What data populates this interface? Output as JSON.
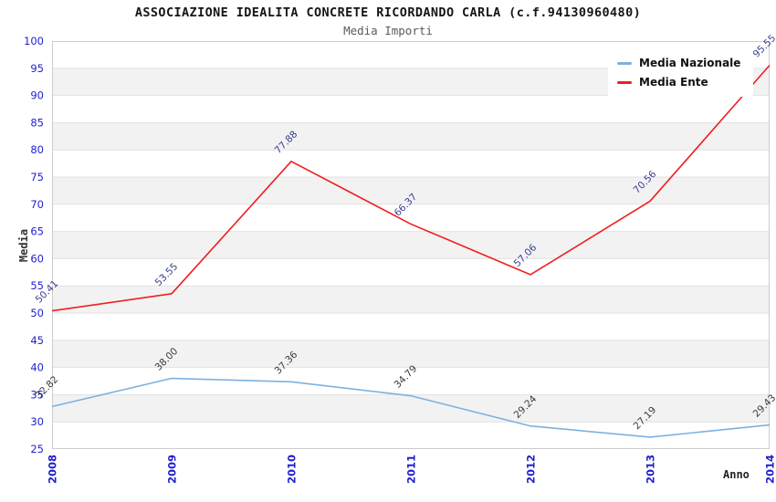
{
  "title": "ASSOCIAZIONE IDEALITA CONCRETE RICORDANDO CARLA (c.f.94130960480)",
  "subtitle": "Media Importi",
  "chart_data": {
    "type": "line",
    "x": [
      "2008",
      "2009",
      "2010",
      "2011",
      "2012",
      "2013",
      "2014"
    ],
    "xlabel": "Anno",
    "ylabel": "Media",
    "ylim": [
      25,
      100
    ],
    "ytick_step": 5,
    "grid": "horizontal-alternating-bands",
    "legend_position": "top-right",
    "series": [
      {
        "name": "Media Nazionale",
        "color": "#7cb1e2",
        "label_color": "#3a3a3a",
        "values": [
          32.82,
          38.0,
          37.36,
          34.79,
          29.24,
          27.19,
          29.43
        ]
      },
      {
        "name": "Media Ente",
        "color": "#f01e1e",
        "label_color": "#363d8f",
        "values": [
          50.41,
          53.55,
          77.88,
          66.37,
          57.06,
          70.56,
          95.55
        ]
      }
    ]
  },
  "colors": {
    "axis_tick": "#1f1fce",
    "grid_line": "#e2e2e2",
    "band_fill": "#f2f2f2",
    "plot_border": "#cccccc",
    "title": "#151515",
    "subtitle": "#5a5a5a",
    "axis_title": "#333333"
  }
}
